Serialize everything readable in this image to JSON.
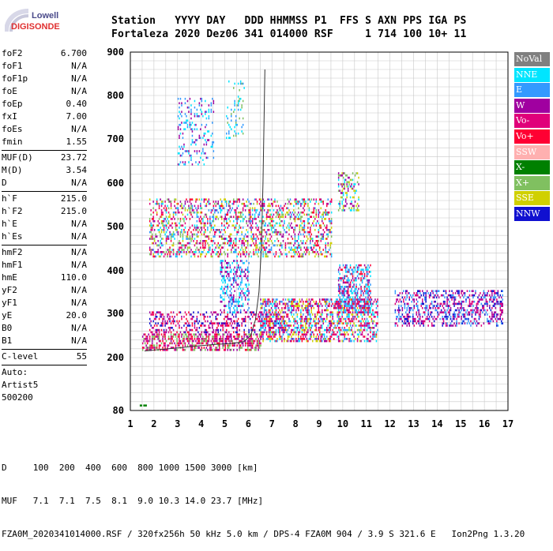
{
  "logo": {
    "line1": "Lowell",
    "line2": "DIGISONDE"
  },
  "header": {
    "line1": "Station   YYYY DAY   DDD HHMMSS P1  FFS S AXN PPS IGA PS",
    "line2": "Fortaleza 2020 Dez06 341 014000 RSF     1 714 100 10+ 11"
  },
  "params": {
    "group1": [
      {
        "k": "foF2",
        "v": "6.700"
      },
      {
        "k": "foF1",
        "v": "N/A"
      },
      {
        "k": "foF1p",
        "v": "N/A"
      },
      {
        "k": "foE",
        "v": "N/A"
      },
      {
        "k": "foEp",
        "v": "0.40"
      },
      {
        "k": "fxI",
        "v": "7.00"
      },
      {
        "k": "foEs",
        "v": "N/A"
      },
      {
        "k": "fmin",
        "v": "1.55"
      }
    ],
    "group2": [
      {
        "k": "MUF(D)",
        "v": "23.72"
      },
      {
        "k": "M(D)",
        "v": "3.54"
      },
      {
        "k": "D",
        "v": "N/A"
      }
    ],
    "group3": [
      {
        "k": "h`F",
        "v": "215.0"
      },
      {
        "k": "h`F2",
        "v": "215.0"
      },
      {
        "k": "h`E",
        "v": "N/A"
      },
      {
        "k": "h`Es",
        "v": "N/A"
      }
    ],
    "group4": [
      {
        "k": "hmF2",
        "v": "N/A"
      },
      {
        "k": "hmF1",
        "v": "N/A"
      },
      {
        "k": "hmE",
        "v": "110.0"
      },
      {
        "k": "yF2",
        "v": "N/A"
      },
      {
        "k": "yF1",
        "v": "N/A"
      },
      {
        "k": "yE",
        "v": "20.0"
      },
      {
        "k": "B0",
        "v": "N/A"
      },
      {
        "k": "B1",
        "v": "N/A"
      }
    ],
    "clevel": {
      "k": "C-level",
      "v": "55"
    },
    "auto": [
      "Auto:",
      "Artist5",
      "500200"
    ]
  },
  "legend": [
    {
      "label": "NoVal",
      "color": "#808080"
    },
    {
      "label": "NNE",
      "color": "#00e5ff"
    },
    {
      "label": "E",
      "color": "#3399ff"
    },
    {
      "label": "W",
      "color": "#a000a0"
    },
    {
      "label": "Vo-",
      "color": "#e0007a"
    },
    {
      "label": "Vo+",
      "color": "#ff0033"
    },
    {
      "label": "SSW",
      "color": "#ffb0b0"
    },
    {
      "label": "X-",
      "color": "#008000"
    },
    {
      "label": "X+",
      "color": "#80c060"
    },
    {
      "label": "SSE",
      "color": "#d0d000"
    },
    {
      "label": "NNW",
      "color": "#1010d0"
    }
  ],
  "footer": {
    "line1": "D     100  200  400  600  800 1000 1500 3000 [km]",
    "line2": "MUF   7.1  7.1  7.5  8.1  9.0 10.3 14.0 23.7 [MHz]",
    "line3": "FZA0M_2020341014000.RSF / 320fx256h 50 kHz 5.0 km / DPS-4 FZA0M 904 / 3.9 S 321.6 E   Ion2Png 1.3.20"
  },
  "chart_data": {
    "type": "scatter",
    "xlim": [
      1,
      17
    ],
    "ylim": [
      80,
      900
    ],
    "x_ticks": [
      "1",
      "2",
      "3",
      "4",
      "5",
      "6",
      "7",
      "8",
      "9",
      "10",
      "11",
      "12",
      "13",
      "14",
      "15",
      "16",
      "17"
    ],
    "y_ticks": [
      "80",
      "200",
      "300",
      "400",
      "500",
      "600",
      "700",
      "800",
      "900"
    ],
    "grid": true,
    "trace": {
      "x": [
        1.6,
        2.2,
        3.0,
        3.8,
        4.6,
        5.3,
        5.8,
        6.1,
        6.3,
        6.45,
        6.55,
        6.62,
        6.67,
        6.7
      ],
      "y": [
        215,
        218,
        222,
        226,
        230,
        232,
        236,
        250,
        285,
        350,
        450,
        600,
        760,
        860
      ]
    },
    "echo_regions": [
      {
        "x": [
          1.5,
          6.5
        ],
        "y": [
          215,
          250
        ],
        "colors": [
          "Vo+",
          "Vo-",
          "W",
          "X+"
        ],
        "density": 0.6
      },
      {
        "x": [
          1.8,
          7.5
        ],
        "y": [
          255,
          300
        ],
        "colors": [
          "W",
          "Vo-",
          "Vo+",
          "NNW"
        ],
        "density": 0.35
      },
      {
        "x": [
          6.5,
          11.5
        ],
        "y": [
          235,
          330
        ],
        "colors": [
          "E",
          "NNE",
          "Vo+",
          "Vo-",
          "W",
          "SSE"
        ],
        "density": 0.5
      },
      {
        "x": [
          9.8,
          11.2
        ],
        "y": [
          300,
          410
        ],
        "colors": [
          "NNE",
          "E",
          "W",
          "Vo+"
        ],
        "density": 0.5
      },
      {
        "x": [
          4.8,
          6.0
        ],
        "y": [
          300,
          420
        ],
        "colors": [
          "NNE",
          "E",
          "W"
        ],
        "density": 0.4
      },
      {
        "x": [
          1.8,
          9.5
        ],
        "y": [
          430,
          560
        ],
        "colors": [
          "W",
          "Vo-",
          "Vo+",
          "SSE",
          "E",
          "NNE",
          "X+"
        ],
        "density": 0.35
      },
      {
        "x": [
          3.0,
          4.5
        ],
        "y": [
          640,
          790
        ],
        "colors": [
          "NNE",
          "E",
          "W"
        ],
        "density": 0.18
      },
      {
        "x": [
          5.0,
          5.8
        ],
        "y": [
          700,
          830
        ],
        "colors": [
          "NNE",
          "E",
          "X+"
        ],
        "density": 0.15
      },
      {
        "x": [
          9.8,
          10.7
        ],
        "y": [
          535,
          620
        ],
        "colors": [
          "SSE",
          "W",
          "NNE",
          "X+"
        ],
        "density": 0.35
      },
      {
        "x": [
          12.2,
          16.8
        ],
        "y": [
          270,
          350
        ],
        "colors": [
          "NNW",
          "W",
          "E",
          "Vo-"
        ],
        "density": 0.4
      },
      {
        "x": [
          1.4,
          1.7
        ],
        "y": [
          89,
          92
        ],
        "colors": [
          "X-"
        ],
        "density": 0.8
      }
    ]
  }
}
